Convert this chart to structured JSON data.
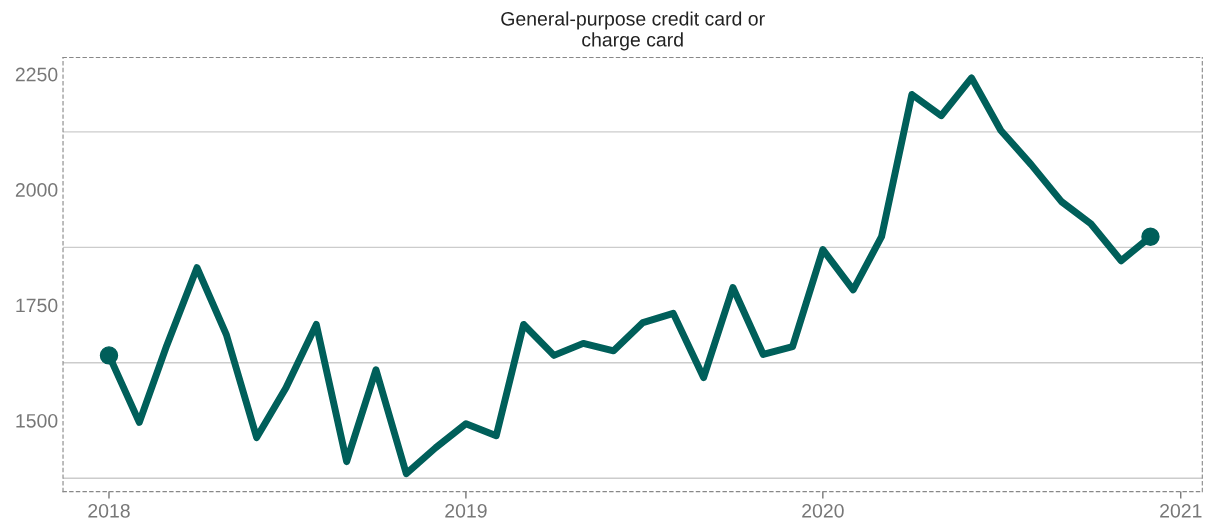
{
  "chart_data": {
    "type": "line",
    "title": "General-purpose credit card or\ncharge card",
    "x": [
      "2018-01",
      "2018-02",
      "2018-03",
      "2018-04",
      "2018-05",
      "2018-06",
      "2018-07",
      "2018-08",
      "2018-09",
      "2018-10",
      "2018-11",
      "2018-12",
      "2019-01",
      "2019-02",
      "2019-03",
      "2019-04",
      "2019-05",
      "2019-06",
      "2019-07",
      "2019-08",
      "2019-09",
      "2019-10",
      "2019-11",
      "2019-12",
      "2020-01",
      "2020-02",
      "2020-03",
      "2020-04",
      "2020-05",
      "2020-06",
      "2020-07",
      "2020-08",
      "2020-09",
      "2020-10",
      "2020-11",
      "2020-12"
    ],
    "series": [
      {
        "color": "#005f5a",
        "values": [
          1641,
          1496,
          1662,
          1831,
          1686,
          1463,
          1571,
          1708,
          1411,
          1610,
          1385,
          1441,
          1493,
          1467,
          1708,
          1641,
          1667,
          1651,
          1712,
          1732,
          1593,
          1788,
          1643,
          1660,
          1870,
          1783,
          1898,
          2206,
          2160,
          2242,
          2128,
          2054,
          1974,
          1926,
          1846,
          1898
        ]
      },
      {
        "type": "scatter",
        "color": "#005f5a",
        "marker": "circle",
        "x": [
          "2018-01",
          "2020-12"
        ],
        "values": [
          1641,
          1898
        ]
      }
    ],
    "xlim": [
      "2017-11-15",
      "2021-01-23"
    ],
    "xticks": [
      {
        "value": "2018-01-01",
        "label": "2018"
      },
      {
        "value": "2019-01-01",
        "label": "2019"
      },
      {
        "value": "2020-01-01",
        "label": "2020"
      },
      {
        "value": "2021-01-01",
        "label": "2021"
      }
    ],
    "ylim": [
      1346,
      2286
    ],
    "yticks": [
      {
        "value": 1375,
        "label": null
      },
      1500,
      {
        "value": 1625,
        "label": null
      },
      1750,
      {
        "value": 1875,
        "label": null
      },
      2000,
      {
        "value": 2125,
        "label": null
      },
      2250
    ],
    "grid": "y",
    "marker": "none",
    "line_style": "solid"
  }
}
